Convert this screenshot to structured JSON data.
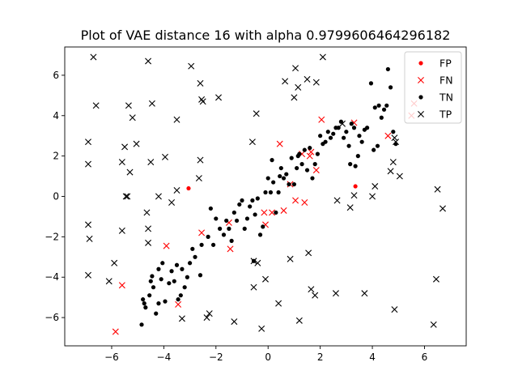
{
  "chart_data": {
    "type": "scatter",
    "title": "Plot of  VAE distance 16 with alpha 0.9799606464296182",
    "xlabel": "",
    "ylabel": "",
    "xlim": [
      -7.8,
      7.6
    ],
    "ylim": [
      -7.4,
      7.4
    ],
    "x_ticks": [
      -6,
      -4,
      -2,
      0,
      2,
      4,
      6
    ],
    "y_ticks": [
      -6,
      -4,
      -2,
      0,
      2,
      4,
      6
    ],
    "x_tick_labels": [
      "−6",
      "−4",
      "−2",
      "0",
      "2",
      "4",
      "6"
    ],
    "y_tick_labels": [
      "−6",
      "−4",
      "−2",
      "0",
      "2",
      "4",
      "6"
    ],
    "grid": false,
    "legend_position": "top-right",
    "series": [
      {
        "name": "FP",
        "marker": "dot",
        "color": "#ff0000",
        "points": [
          [
            -3.05,
            0.4
          ],
          [
            3.35,
            0.5
          ]
        ]
      },
      {
        "name": "FN",
        "marker": "x",
        "color": "#ff0000",
        "points": [
          [
            -5.85,
            -6.7
          ],
          [
            -5.6,
            -4.4
          ],
          [
            -3.9,
            -2.45
          ],
          [
            -3.45,
            -5.35
          ],
          [
            -2.55,
            -1.8
          ],
          [
            -1.45,
            -2.6
          ],
          [
            -1.5,
            -1.3
          ],
          [
            -0.15,
            -0.8
          ],
          [
            -0.1,
            -1.4
          ],
          [
            0.15,
            -0.8
          ],
          [
            0.6,
            -0.7
          ],
          [
            0.45,
            2.6
          ],
          [
            0.85,
            0.6
          ],
          [
            1.05,
            -0.2
          ],
          [
            1.3,
            2.1
          ],
          [
            1.4,
            -0.3
          ],
          [
            1.6,
            2.0
          ],
          [
            1.65,
            2.2
          ],
          [
            1.85,
            1.3
          ],
          [
            2.05,
            3.8
          ],
          [
            3.3,
            3.65
          ],
          [
            4.6,
            3.0
          ],
          [
            5.5,
            4.0
          ],
          [
            5.6,
            4.6
          ]
        ]
      },
      {
        "name": "TN",
        "marker": "dot",
        "color": "#000000",
        "points": [
          [
            -4.85,
            -6.35
          ],
          [
            -4.75,
            -5.3
          ],
          [
            -4.7,
            -5.5
          ],
          [
            -4.8,
            -5.1
          ],
          [
            -4.55,
            -4.9
          ],
          [
            -4.5,
            -4.2
          ],
          [
            -4.4,
            -4.5
          ],
          [
            -4.45,
            -3.95
          ],
          [
            -4.3,
            -5.8
          ],
          [
            -4.2,
            -5.3
          ],
          [
            -4.1,
            -4.1
          ],
          [
            -4.2,
            -3.6
          ],
          [
            -4.05,
            -3.3
          ],
          [
            -3.95,
            -5.2
          ],
          [
            -3.8,
            -4.3
          ],
          [
            -3.7,
            -3.7
          ],
          [
            -3.6,
            -4.2
          ],
          [
            -3.5,
            -3.4
          ],
          [
            -3.45,
            -5.1
          ],
          [
            -3.35,
            -4.9
          ],
          [
            -3.3,
            -3.6
          ],
          [
            -3.2,
            -4.5
          ],
          [
            -3.1,
            -4.0
          ],
          [
            -3.0,
            -3.3
          ],
          [
            -2.9,
            -2.6
          ],
          [
            -2.8,
            -3.0
          ],
          [
            -2.6,
            -3.9
          ],
          [
            -2.55,
            -2.4
          ],
          [
            -2.3,
            -2.0
          ],
          [
            -2.2,
            -0.6
          ],
          [
            -2.1,
            -2.4
          ],
          [
            -2.0,
            -1.1
          ],
          [
            -1.85,
            -1.6
          ],
          [
            -1.7,
            -1.9
          ],
          [
            -1.6,
            -1.2
          ],
          [
            -1.5,
            -1.6
          ],
          [
            -1.4,
            -2.2
          ],
          [
            -1.3,
            -0.8
          ],
          [
            -1.2,
            -1.2
          ],
          [
            -1.1,
            -0.4
          ],
          [
            -1.0,
            -0.2
          ],
          [
            -0.9,
            -1.6
          ],
          [
            -0.8,
            -1.1
          ],
          [
            -0.7,
            -0.5
          ],
          [
            -0.6,
            -0.2
          ],
          [
            -0.55,
            -3.2
          ],
          [
            -0.5,
            -0.9
          ],
          [
            -0.4,
            -0.1
          ],
          [
            -0.3,
            -1.9
          ],
          [
            -0.2,
            -1.5
          ],
          [
            -0.1,
            0.2
          ],
          [
            0.0,
            0.9
          ],
          [
            0.1,
            0.2
          ],
          [
            0.15,
            1.8
          ],
          [
            0.2,
            0.7
          ],
          [
            0.3,
            -0.8
          ],
          [
            0.4,
            0.2
          ],
          [
            0.45,
            1.0
          ],
          [
            0.5,
            1.4
          ],
          [
            0.6,
            0.9
          ],
          [
            0.7,
            1.1
          ],
          [
            0.8,
            0.6
          ],
          [
            0.9,
            1.9
          ],
          [
            1.0,
            0.6
          ],
          [
            1.1,
            1.4
          ],
          [
            1.15,
            2.0
          ],
          [
            1.2,
            2.1
          ],
          [
            1.3,
            1.6
          ],
          [
            1.4,
            2.3
          ],
          [
            1.5,
            1.3
          ],
          [
            1.6,
            2.4
          ],
          [
            1.7,
            0.9
          ],
          [
            1.8,
            1.6
          ],
          [
            1.9,
            2.1
          ],
          [
            2.0,
            3.0
          ],
          [
            2.1,
            2.6
          ],
          [
            2.2,
            2.7
          ],
          [
            2.3,
            3.2
          ],
          [
            2.4,
            2.9
          ],
          [
            2.5,
            3.1
          ],
          [
            2.6,
            3.4
          ],
          [
            2.7,
            3.4
          ],
          [
            2.8,
            3.7
          ],
          [
            2.9,
            2.9
          ],
          [
            3.0,
            3.2
          ],
          [
            3.1,
            2.5
          ],
          [
            3.15,
            1.6
          ],
          [
            3.2,
            3.6
          ],
          [
            3.3,
            3.4
          ],
          [
            3.35,
            1.5
          ],
          [
            3.45,
            2.0
          ],
          [
            3.5,
            3.0
          ],
          [
            3.6,
            2.7
          ],
          [
            3.7,
            3.3
          ],
          [
            3.8,
            3.4
          ],
          [
            3.95,
            5.6
          ],
          [
            4.05,
            2.3
          ],
          [
            4.1,
            4.4
          ],
          [
            4.2,
            2.5
          ],
          [
            4.25,
            4.5
          ],
          [
            4.35,
            3.9
          ],
          [
            4.45,
            4.3
          ],
          [
            4.55,
            4.5
          ],
          [
            4.6,
            6.3
          ],
          [
            4.7,
            5.4
          ],
          [
            4.8,
            3.2
          ],
          [
            4.9,
            2.6
          ]
        ]
      },
      {
        "name": "TP",
        "marker": "x",
        "color": "#000000",
        "points": [
          [
            -6.9,
            2.7
          ],
          [
            -6.9,
            1.6
          ],
          [
            -6.9,
            -1.4
          ],
          [
            -6.85,
            -2.1
          ],
          [
            -6.9,
            -3.9
          ],
          [
            -6.7,
            6.9
          ],
          [
            -6.6,
            4.5
          ],
          [
            -6.1,
            -4.2
          ],
          [
            -5.9,
            -3.3
          ],
          [
            -5.6,
            1.7
          ],
          [
            -5.6,
            -1.7
          ],
          [
            -5.5,
            2.45
          ],
          [
            -5.45,
            0.0
          ],
          [
            -5.4,
            0.0
          ],
          [
            -5.35,
            4.5
          ],
          [
            -5.3,
            1.2
          ],
          [
            -5.2,
            3.9
          ],
          [
            -5.05,
            2.6
          ],
          [
            -4.65,
            -0.8
          ],
          [
            -4.6,
            6.7
          ],
          [
            -4.6,
            -1.6
          ],
          [
            -4.6,
            -2.3
          ],
          [
            -4.5,
            1.7
          ],
          [
            -4.45,
            4.6
          ],
          [
            -4.2,
            0.0
          ],
          [
            -3.95,
            1.95
          ],
          [
            -3.7,
            -0.3
          ],
          [
            -3.5,
            3.8
          ],
          [
            -3.5,
            0.3
          ],
          [
            -3.3,
            -6.05
          ],
          [
            -2.95,
            6.45
          ],
          [
            -2.65,
            0.9
          ],
          [
            -2.6,
            1.8
          ],
          [
            -2.6,
            5.6
          ],
          [
            -2.55,
            4.8
          ],
          [
            -2.5,
            4.7
          ],
          [
            -2.35,
            -6.0
          ],
          [
            -2.25,
            -5.8
          ],
          [
            -1.9,
            4.9
          ],
          [
            -1.3,
            -6.2
          ],
          [
            -0.6,
            2.7
          ],
          [
            -0.55,
            -4.5
          ],
          [
            -0.55,
            -3.2
          ],
          [
            -0.45,
            4.1
          ],
          [
            -0.4,
            -3.3
          ],
          [
            -0.25,
            -6.55
          ],
          [
            -0.1,
            -4.1
          ],
          [
            0.4,
            -5.3
          ],
          [
            0.65,
            5.7
          ],
          [
            0.85,
            -3.1
          ],
          [
            1.0,
            4.9
          ],
          [
            1.05,
            6.35
          ],
          [
            1.15,
            5.4
          ],
          [
            1.2,
            -6.15
          ],
          [
            1.5,
            5.8
          ],
          [
            1.55,
            -2.8
          ],
          [
            1.65,
            -4.6
          ],
          [
            1.8,
            -4.9
          ],
          [
            1.85,
            5.65
          ],
          [
            2.1,
            6.9
          ],
          [
            2.65,
            -0.2
          ],
          [
            2.6,
            -4.8
          ],
          [
            2.85,
            3.6
          ],
          [
            3.15,
            -0.55
          ],
          [
            3.3,
            0.05
          ],
          [
            3.7,
            -4.8
          ],
          [
            4.0,
            0.0
          ],
          [
            4.1,
            0.5
          ],
          [
            4.7,
            1.25
          ],
          [
            4.8,
            1.7
          ],
          [
            4.85,
            2.9
          ],
          [
            4.85,
            -5.6
          ],
          [
            4.9,
            2.7
          ],
          [
            5.05,
            1.0
          ],
          [
            6.35,
            -6.35
          ],
          [
            6.45,
            -4.1
          ],
          [
            6.5,
            0.35
          ],
          [
            6.7,
            -0.6
          ]
        ]
      }
    ]
  }
}
